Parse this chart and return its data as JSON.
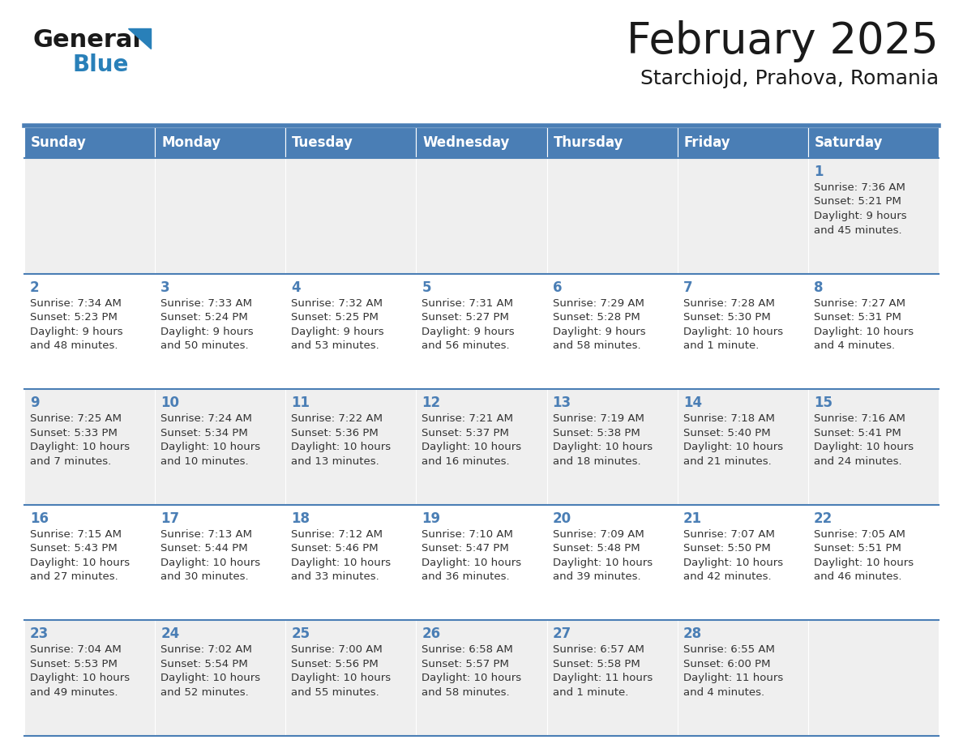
{
  "title": "February 2025",
  "subtitle": "Starchiojd, Prahova, Romania",
  "days_of_week": [
    "Sunday",
    "Monday",
    "Tuesday",
    "Wednesday",
    "Thursday",
    "Friday",
    "Saturday"
  ],
  "header_bg": "#4a7eb5",
  "header_text": "#ffffff",
  "row_bg_light": "#efefef",
  "row_bg_white": "#ffffff",
  "border_color": "#4a7eb5",
  "day_number_color": "#4a7eb5",
  "cell_text_color": "#333333",
  "logo_general_color": "#1a1a1a",
  "logo_blue_color": "#2980b9",
  "calendar_data": [
    {
      "day": 1,
      "col": 6,
      "row": 0,
      "sunrise": "7:36 AM",
      "sunset": "5:21 PM",
      "daylight": "9 hours and 45 minutes."
    },
    {
      "day": 2,
      "col": 0,
      "row": 1,
      "sunrise": "7:34 AM",
      "sunset": "5:23 PM",
      "daylight": "9 hours and 48 minutes."
    },
    {
      "day": 3,
      "col": 1,
      "row": 1,
      "sunrise": "7:33 AM",
      "sunset": "5:24 PM",
      "daylight": "9 hours and 50 minutes."
    },
    {
      "day": 4,
      "col": 2,
      "row": 1,
      "sunrise": "7:32 AM",
      "sunset": "5:25 PM",
      "daylight": "9 hours and 53 minutes."
    },
    {
      "day": 5,
      "col": 3,
      "row": 1,
      "sunrise": "7:31 AM",
      "sunset": "5:27 PM",
      "daylight": "9 hours and 56 minutes."
    },
    {
      "day": 6,
      "col": 4,
      "row": 1,
      "sunrise": "7:29 AM",
      "sunset": "5:28 PM",
      "daylight": "9 hours and 58 minutes."
    },
    {
      "day": 7,
      "col": 5,
      "row": 1,
      "sunrise": "7:28 AM",
      "sunset": "5:30 PM",
      "daylight": "10 hours and 1 minute."
    },
    {
      "day": 8,
      "col": 6,
      "row": 1,
      "sunrise": "7:27 AM",
      "sunset": "5:31 PM",
      "daylight": "10 hours and 4 minutes."
    },
    {
      "day": 9,
      "col": 0,
      "row": 2,
      "sunrise": "7:25 AM",
      "sunset": "5:33 PM",
      "daylight": "10 hours and 7 minutes."
    },
    {
      "day": 10,
      "col": 1,
      "row": 2,
      "sunrise": "7:24 AM",
      "sunset": "5:34 PM",
      "daylight": "10 hours and 10 minutes."
    },
    {
      "day": 11,
      "col": 2,
      "row": 2,
      "sunrise": "7:22 AM",
      "sunset": "5:36 PM",
      "daylight": "10 hours and 13 minutes."
    },
    {
      "day": 12,
      "col": 3,
      "row": 2,
      "sunrise": "7:21 AM",
      "sunset": "5:37 PM",
      "daylight": "10 hours and 16 minutes."
    },
    {
      "day": 13,
      "col": 4,
      "row": 2,
      "sunrise": "7:19 AM",
      "sunset": "5:38 PM",
      "daylight": "10 hours and 18 minutes."
    },
    {
      "day": 14,
      "col": 5,
      "row": 2,
      "sunrise": "7:18 AM",
      "sunset": "5:40 PM",
      "daylight": "10 hours and 21 minutes."
    },
    {
      "day": 15,
      "col": 6,
      "row": 2,
      "sunrise": "7:16 AM",
      "sunset": "5:41 PM",
      "daylight": "10 hours and 24 minutes."
    },
    {
      "day": 16,
      "col": 0,
      "row": 3,
      "sunrise": "7:15 AM",
      "sunset": "5:43 PM",
      "daylight": "10 hours and 27 minutes."
    },
    {
      "day": 17,
      "col": 1,
      "row": 3,
      "sunrise": "7:13 AM",
      "sunset": "5:44 PM",
      "daylight": "10 hours and 30 minutes."
    },
    {
      "day": 18,
      "col": 2,
      "row": 3,
      "sunrise": "7:12 AM",
      "sunset": "5:46 PM",
      "daylight": "10 hours and 33 minutes."
    },
    {
      "day": 19,
      "col": 3,
      "row": 3,
      "sunrise": "7:10 AM",
      "sunset": "5:47 PM",
      "daylight": "10 hours and 36 minutes."
    },
    {
      "day": 20,
      "col": 4,
      "row": 3,
      "sunrise": "7:09 AM",
      "sunset": "5:48 PM",
      "daylight": "10 hours and 39 minutes."
    },
    {
      "day": 21,
      "col": 5,
      "row": 3,
      "sunrise": "7:07 AM",
      "sunset": "5:50 PM",
      "daylight": "10 hours and 42 minutes."
    },
    {
      "day": 22,
      "col": 6,
      "row": 3,
      "sunrise": "7:05 AM",
      "sunset": "5:51 PM",
      "daylight": "10 hours and 46 minutes."
    },
    {
      "day": 23,
      "col": 0,
      "row": 4,
      "sunrise": "7:04 AM",
      "sunset": "5:53 PM",
      "daylight": "10 hours and 49 minutes."
    },
    {
      "day": 24,
      "col": 1,
      "row": 4,
      "sunrise": "7:02 AM",
      "sunset": "5:54 PM",
      "daylight": "10 hours and 52 minutes."
    },
    {
      "day": 25,
      "col": 2,
      "row": 4,
      "sunrise": "7:00 AM",
      "sunset": "5:56 PM",
      "daylight": "10 hours and 55 minutes."
    },
    {
      "day": 26,
      "col": 3,
      "row": 4,
      "sunrise": "6:58 AM",
      "sunset": "5:57 PM",
      "daylight": "10 hours and 58 minutes."
    },
    {
      "day": 27,
      "col": 4,
      "row": 4,
      "sunrise": "6:57 AM",
      "sunset": "5:58 PM",
      "daylight": "11 hours and 1 minute."
    },
    {
      "day": 28,
      "col": 5,
      "row": 4,
      "sunrise": "6:55 AM",
      "sunset": "6:00 PM",
      "daylight": "11 hours and 4 minutes."
    }
  ],
  "num_rows": 5,
  "num_cols": 7
}
